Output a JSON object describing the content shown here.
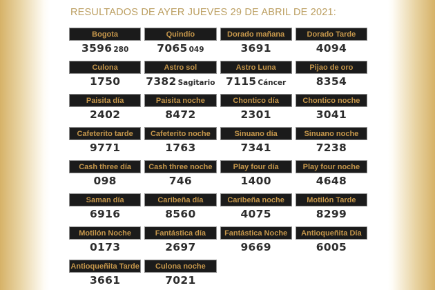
{
  "page": {
    "title": "RESULTADOS DE AYER JUEVES 29 DE ABRIL DE 2021:"
  },
  "colors": {
    "edge_gold": "#d6b268",
    "title_gold": "#bb9e60",
    "header_background": "#1b1b1b",
    "header_border": "#8f8f8f",
    "header_text_gold": "#c6974b",
    "number_text": "#2d2d2d"
  },
  "results": [
    {
      "name": "Bogota",
      "value": "3596",
      "extra": "280"
    },
    {
      "name": "Quindío",
      "value": "7065",
      "extra": "049"
    },
    {
      "name": "Dorado mañana",
      "value": "3691",
      "extra": ""
    },
    {
      "name": "Dorado Tarde",
      "value": "4094",
      "extra": ""
    },
    {
      "name": "Culona",
      "value": "1750",
      "extra": ""
    },
    {
      "name": "Astro sol",
      "value": "7382",
      "extra": "Sagitario"
    },
    {
      "name": "Astro Luna",
      "value": "7115",
      "extra": "Cáncer"
    },
    {
      "name": "Pijao de oro",
      "value": "8354",
      "extra": ""
    },
    {
      "name": "Paisita día",
      "value": "2402",
      "extra": ""
    },
    {
      "name": "Paisita noche",
      "value": "8472",
      "extra": ""
    },
    {
      "name": "Chontico día",
      "value": "2301",
      "extra": ""
    },
    {
      "name": "Chontico noche",
      "value": "3041",
      "extra": ""
    },
    {
      "name": "Cafeterito tarde",
      "value": "9771",
      "extra": ""
    },
    {
      "name": "Cafeterito noche",
      "value": "1763",
      "extra": ""
    },
    {
      "name": "Sinuano día",
      "value": "7341",
      "extra": ""
    },
    {
      "name": "Sinuano noche",
      "value": "7238",
      "extra": ""
    },
    {
      "name": "Cash three día",
      "value": "098",
      "extra": ""
    },
    {
      "name": "Cash three noche",
      "value": "746",
      "extra": ""
    },
    {
      "name": "Play four día",
      "value": "1400",
      "extra": ""
    },
    {
      "name": "Play four noche",
      "value": "4648",
      "extra": ""
    },
    {
      "name": "Saman día",
      "value": "6916",
      "extra": ""
    },
    {
      "name": "Caribeña día",
      "value": "8560",
      "extra": ""
    },
    {
      "name": "Caribeña noche",
      "value": "4075",
      "extra": ""
    },
    {
      "name": "Motilón Tarde",
      "value": "8299",
      "extra": ""
    },
    {
      "name": "Motilón Noche",
      "value": "0173",
      "extra": ""
    },
    {
      "name": "Fantástica día",
      "value": "2697",
      "extra": ""
    },
    {
      "name": "Fantástica Noche",
      "value": "9669",
      "extra": ""
    },
    {
      "name": "Antioqueñita Día",
      "value": "6005",
      "extra": ""
    },
    {
      "name": "Antioqueñita Tarde",
      "value": "3661",
      "extra": ""
    },
    {
      "name": "Culona noche",
      "value": "7021",
      "extra": ""
    }
  ]
}
